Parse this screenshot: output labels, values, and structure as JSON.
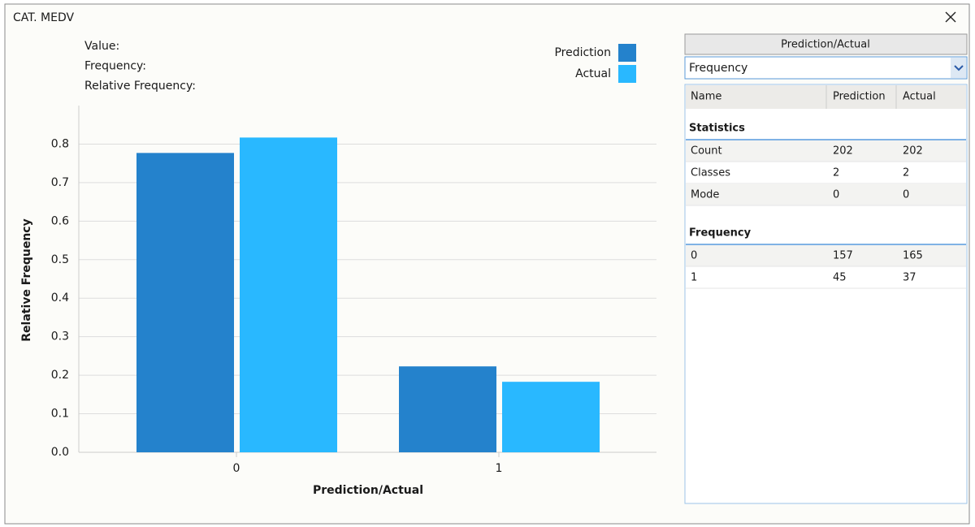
{
  "window": {
    "title": "CAT. MEDV"
  },
  "info_labels": [
    "Value:",
    "Frequency:",
    "Relative Frequency:"
  ],
  "chart_data": {
    "type": "bar",
    "x_label": "Prediction/Actual",
    "y_label": "Relative Frequency",
    "categories": [
      "0",
      "1"
    ],
    "series": [
      {
        "name": "Prediction",
        "color": "#2482cc",
        "values": [
          0.777,
          0.223
        ]
      },
      {
        "name": "Actual",
        "color": "#29b8ff",
        "values": [
          0.817,
          0.183
        ]
      }
    ],
    "ylim": [
      0,
      0.9
    ],
    "yticks": [
      {
        "value": 0,
        "label": "0.0"
      },
      0.1,
      0.2,
      0.3,
      0.4,
      0.5,
      0.6,
      0.7,
      0.8
    ],
    "grid": true,
    "legend": "upper right"
  },
  "panel": {
    "button": "Prediction/Actual",
    "dropdown": "Frequency",
    "table": {
      "columns": [
        "Name",
        "Prediction",
        "Actual"
      ],
      "sections": [
        {
          "title": "Statistics",
          "rows": [
            [
              "Count",
              202,
              202
            ],
            [
              "Classes",
              2,
              2
            ],
            [
              "Mode",
              0,
              0
            ]
          ]
        },
        {
          "title": "Frequency",
          "rows": [
            [
              "0",
              157,
              165
            ],
            [
              "1",
              45,
              37
            ]
          ]
        }
      ]
    }
  }
}
